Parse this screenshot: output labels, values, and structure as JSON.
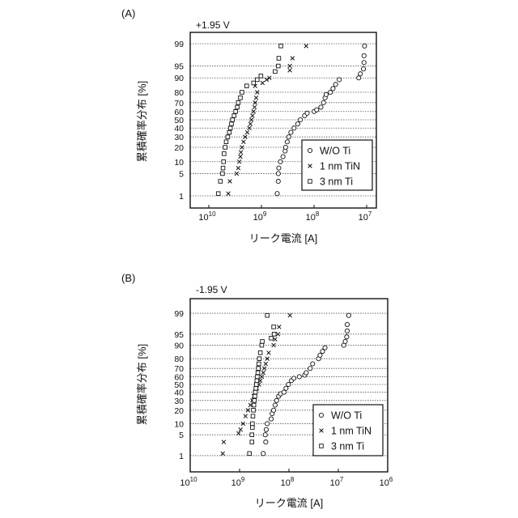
{
  "chart_data": [
    {
      "type": "scatter",
      "panel_label": "(A)",
      "title": "+1.95 V",
      "xlabel": "リーク電流 [A]",
      "ylabel": "累積確率分布 [%]",
      "x_scale": "log10 (values stored as log10 of current)",
      "y_scale": "normal probability",
      "xlim": [
        -10.35,
        -6.8
      ],
      "xticks": [
        {
          "value": -10,
          "base": "10",
          "exp": "10"
        },
        {
          "value": -9,
          "base": "10",
          "exp": "9"
        },
        {
          "value": -8,
          "base": "10",
          "exp": "8"
        },
        {
          "value": -7,
          "base": "10",
          "exp": "7"
        }
      ],
      "yticks": [
        "1",
        "5",
        "10",
        "20",
        "30",
        "40",
        "50",
        "60",
        "70",
        "80",
        "90",
        "95",
        "99"
      ],
      "grid": "horizontal dotted",
      "legend_position": "bottom-right",
      "series": [
        {
          "name": "W/O Ti",
          "marker": "circle",
          "points": [
            [
              -8.7,
              1.2
            ],
            [
              -8.68,
              3
            ],
            [
              -8.68,
              5
            ],
            [
              -8.67,
              7
            ],
            [
              -8.64,
              10
            ],
            [
              -8.59,
              13
            ],
            [
              -8.55,
              17
            ],
            [
              -8.54,
              20
            ],
            [
              -8.51,
              25
            ],
            [
              -8.48,
              30
            ],
            [
              -8.44,
              35
            ],
            [
              -8.38,
              40
            ],
            [
              -8.31,
              45
            ],
            [
              -8.26,
              50
            ],
            [
              -8.18,
              55
            ],
            [
              -8.13,
              58
            ],
            [
              -8.0,
              60
            ],
            [
              -7.95,
              62
            ],
            [
              -7.87,
              65
            ],
            [
              -7.82,
              70
            ],
            [
              -7.79,
              75
            ],
            [
              -7.77,
              78
            ],
            [
              -7.69,
              80
            ],
            [
              -7.64,
              83
            ],
            [
              -7.59,
              86
            ],
            [
              -7.52,
              89
            ],
            [
              -7.15,
              90
            ],
            [
              -7.12,
              92
            ],
            [
              -7.06,
              94
            ],
            [
              -7.05,
              96
            ],
            [
              -7.05,
              97.5
            ],
            [
              -7.04,
              98.8
            ]
          ]
        },
        {
          "name": "1 nm TiN",
          "marker": "x",
          "points": [
            [
              -9.63,
              1.2
            ],
            [
              -9.6,
              3
            ],
            [
              -9.47,
              5
            ],
            [
              -9.44,
              7
            ],
            [
              -9.42,
              10
            ],
            [
              -9.4,
              13
            ],
            [
              -9.39,
              16
            ],
            [
              -9.37,
              20
            ],
            [
              -9.34,
              25
            ],
            [
              -9.31,
              30
            ],
            [
              -9.27,
              35
            ],
            [
              -9.23,
              40
            ],
            [
              -9.21,
              45
            ],
            [
              -9.19,
              50
            ],
            [
              -9.17,
              55
            ],
            [
              -9.15,
              60
            ],
            [
              -9.13,
              65
            ],
            [
              -9.12,
              70
            ],
            [
              -9.1,
              75
            ],
            [
              -9.08,
              80
            ],
            [
              -9.12,
              85
            ],
            [
              -8.98,
              87
            ],
            [
              -8.9,
              89
            ],
            [
              -8.85,
              90
            ],
            [
              -8.46,
              93.5
            ],
            [
              -8.46,
              95
            ],
            [
              -8.41,
              97
            ],
            [
              -8.15,
              98.8
            ]
          ]
        },
        {
          "name": "3 nm Ti",
          "marker": "square",
          "points": [
            [
              -9.82,
              1.2
            ],
            [
              -9.78,
              3
            ],
            [
              -9.74,
              5
            ],
            [
              -9.73,
              7
            ],
            [
              -9.72,
              10
            ],
            [
              -9.71,
              15
            ],
            [
              -9.69,
              20
            ],
            [
              -9.67,
              25
            ],
            [
              -9.64,
              30
            ],
            [
              -9.61,
              35
            ],
            [
              -9.59,
              40
            ],
            [
              -9.57,
              45
            ],
            [
              -9.55,
              50
            ],
            [
              -9.52,
              55
            ],
            [
              -9.49,
              60
            ],
            [
              -9.46,
              65
            ],
            [
              -9.44,
              70
            ],
            [
              -9.4,
              75
            ],
            [
              -9.37,
              80
            ],
            [
              -9.28,
              85
            ],
            [
              -9.15,
              87
            ],
            [
              -9.08,
              89
            ],
            [
              -9.01,
              91
            ],
            [
              -8.74,
              93
            ],
            [
              -8.68,
              95
            ],
            [
              -8.67,
              97
            ],
            [
              -8.63,
              98.8
            ]
          ]
        }
      ]
    },
    {
      "type": "scatter",
      "panel_label": "(B)",
      "title": "-1.95 V",
      "xlabel": "リーク電流 [A]",
      "ylabel": "累積確率分布 [%]",
      "x_scale": "log10 (values stored as log10 of current)",
      "y_scale": "normal probability",
      "xlim": [
        -10,
        -6
      ],
      "xticks": [
        {
          "value": -10,
          "base": "10",
          "exp": "10"
        },
        {
          "value": -9,
          "base": "10",
          "exp": "9"
        },
        {
          "value": -8,
          "base": "10",
          "exp": "8"
        },
        {
          "value": -7,
          "base": "10",
          "exp": "7"
        },
        {
          "value": -6,
          "base": "10",
          "exp": "6"
        }
      ],
      "yticks": [
        "1",
        "5",
        "10",
        "20",
        "30",
        "40",
        "50",
        "60",
        "70",
        "80",
        "90",
        "95",
        "99"
      ],
      "grid": "horizontal dotted",
      "legend_position": "bottom-right",
      "series": [
        {
          "name": "W/O Ti",
          "marker": "circle",
          "points": [
            [
              -8.52,
              1.2
            ],
            [
              -8.47,
              3
            ],
            [
              -8.48,
              5
            ],
            [
              -8.46,
              7
            ],
            [
              -8.44,
              10
            ],
            [
              -8.36,
              13
            ],
            [
              -8.34,
              17
            ],
            [
              -8.31,
              20
            ],
            [
              -8.28,
              25
            ],
            [
              -8.25,
              30
            ],
            [
              -8.21,
              35
            ],
            [
              -8.17,
              38
            ],
            [
              -8.1,
              40
            ],
            [
              -8.06,
              45
            ],
            [
              -8.01,
              50
            ],
            [
              -7.95,
              55
            ],
            [
              -7.9,
              58
            ],
            [
              -7.79,
              60
            ],
            [
              -7.68,
              62
            ],
            [
              -7.65,
              65
            ],
            [
              -7.57,
              70
            ],
            [
              -7.52,
              75
            ],
            [
              -7.4,
              80
            ],
            [
              -7.37,
              83
            ],
            [
              -7.32,
              86
            ],
            [
              -7.27,
              88.5
            ],
            [
              -6.89,
              90
            ],
            [
              -6.86,
              92
            ],
            [
              -6.83,
              94
            ],
            [
              -6.82,
              96
            ],
            [
              -6.82,
              97.5
            ],
            [
              -6.79,
              98.8
            ]
          ]
        },
        {
          "name": "1 nm TiN",
          "marker": "x",
          "points": [
            [
              -9.34,
              1.2
            ],
            [
              -9.32,
              3
            ],
            [
              -9.02,
              5.5
            ],
            [
              -8.98,
              7
            ],
            [
              -8.93,
              10
            ],
            [
              -8.88,
              15
            ],
            [
              -8.83,
              20
            ],
            [
              -8.78,
              25
            ],
            [
              -8.74,
              30
            ],
            [
              -8.71,
              35
            ],
            [
              -8.69,
              40
            ],
            [
              -8.65,
              45
            ],
            [
              -8.61,
              50
            ],
            [
              -8.58,
              55
            ],
            [
              -8.55,
              60
            ],
            [
              -8.52,
              65
            ],
            [
              -8.5,
              70
            ],
            [
              -8.47,
              75
            ],
            [
              -8.44,
              80
            ],
            [
              -8.41,
              85
            ],
            [
              -8.31,
              90
            ],
            [
              -8.28,
              93
            ],
            [
              -8.22,
              95
            ],
            [
              -8.2,
              97
            ],
            [
              -7.98,
              98.8
            ]
          ]
        },
        {
          "name": "3 nm Ti",
          "marker": "square",
          "points": [
            [
              -8.8,
              1.2
            ],
            [
              -8.75,
              3
            ],
            [
              -8.75,
              5
            ],
            [
              -8.74,
              8
            ],
            [
              -8.74,
              10
            ],
            [
              -8.73,
              15
            ],
            [
              -8.72,
              20
            ],
            [
              -8.71,
              25
            ],
            [
              -8.7,
              30
            ],
            [
              -8.69,
              35
            ],
            [
              -8.68,
              40
            ],
            [
              -8.67,
              45
            ],
            [
              -8.66,
              50
            ],
            [
              -8.65,
              55
            ],
            [
              -8.64,
              60
            ],
            [
              -8.63,
              65
            ],
            [
              -8.62,
              70
            ],
            [
              -8.61,
              75
            ],
            [
              -8.6,
              80
            ],
            [
              -8.58,
              85
            ],
            [
              -8.55,
              90
            ],
            [
              -8.54,
              92
            ],
            [
              -8.36,
              93.5
            ],
            [
              -8.3,
              95
            ],
            [
              -8.31,
              97
            ],
            [
              -8.44,
              98.8
            ]
          ]
        }
      ]
    }
  ]
}
